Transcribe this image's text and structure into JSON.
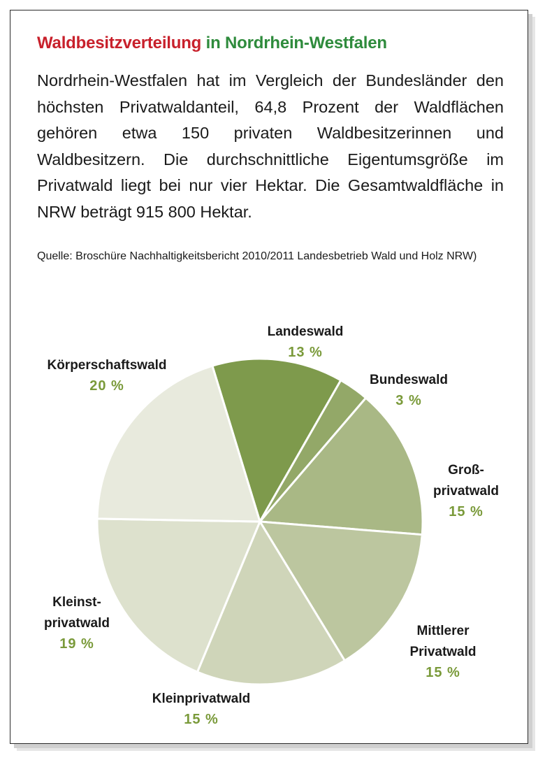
{
  "title": {
    "part1": "Waldbesitzverteilung",
    "part2": "in Nordrhein-Westfalen"
  },
  "intro": "Nordrhein-Westfalen hat im Vergleich der Bundesländer den höchsten Privatwaldanteil, 64,8 Prozent der Waldflächen gehören etwa 150 privaten Waldbesitzerinnen und Waldbesitzern. Die durchschnittliche Eigentumsgröße im Privatwald liegt bei nur vier Hektar. Die Gesamtwaldfläche in NRW beträgt 915 800 Hektar.",
  "source": "Quelle: Broschüre Nachhaltigkeitsbericht 2010/2011 Landesbetrieb Wald und Holz NRW)",
  "colors": {
    "title_red": "#c8202b",
    "title_green": "#2e8b3c",
    "value_green": "#7a9a3a"
  },
  "chart_data": {
    "type": "pie",
    "unit": "%",
    "slices": [
      {
        "name_lines": [
          "Landeswald"
        ],
        "value": 13,
        "value_label": "13 %",
        "color": "#7e9a4c"
      },
      {
        "name_lines": [
          "Bundeswald"
        ],
        "value": 3,
        "value_label": "3 %",
        "color": "#93a868"
      },
      {
        "name_lines": [
          "Groß-",
          "privatwald"
        ],
        "value": 15,
        "value_label": "15 %",
        "color": "#a9b885"
      },
      {
        "name_lines": [
          "Mittlerer",
          "Privatwald"
        ],
        "value": 15,
        "value_label": "15 %",
        "color": "#bcc69f"
      },
      {
        "name_lines": [
          "Kleinprivatwald"
        ],
        "value": 15,
        "value_label": "15 %",
        "color": "#cfd5b9"
      },
      {
        "name_lines": [
          "Kleinst-",
          "privatwald"
        ],
        "value": 19,
        "value_label": "19 %",
        "color": "#dde1cd"
      },
      {
        "name_lines": [
          "Körperschaftswald"
        ],
        "value": 20,
        "value_label": "20 %",
        "color": "#e8eadd"
      }
    ]
  }
}
